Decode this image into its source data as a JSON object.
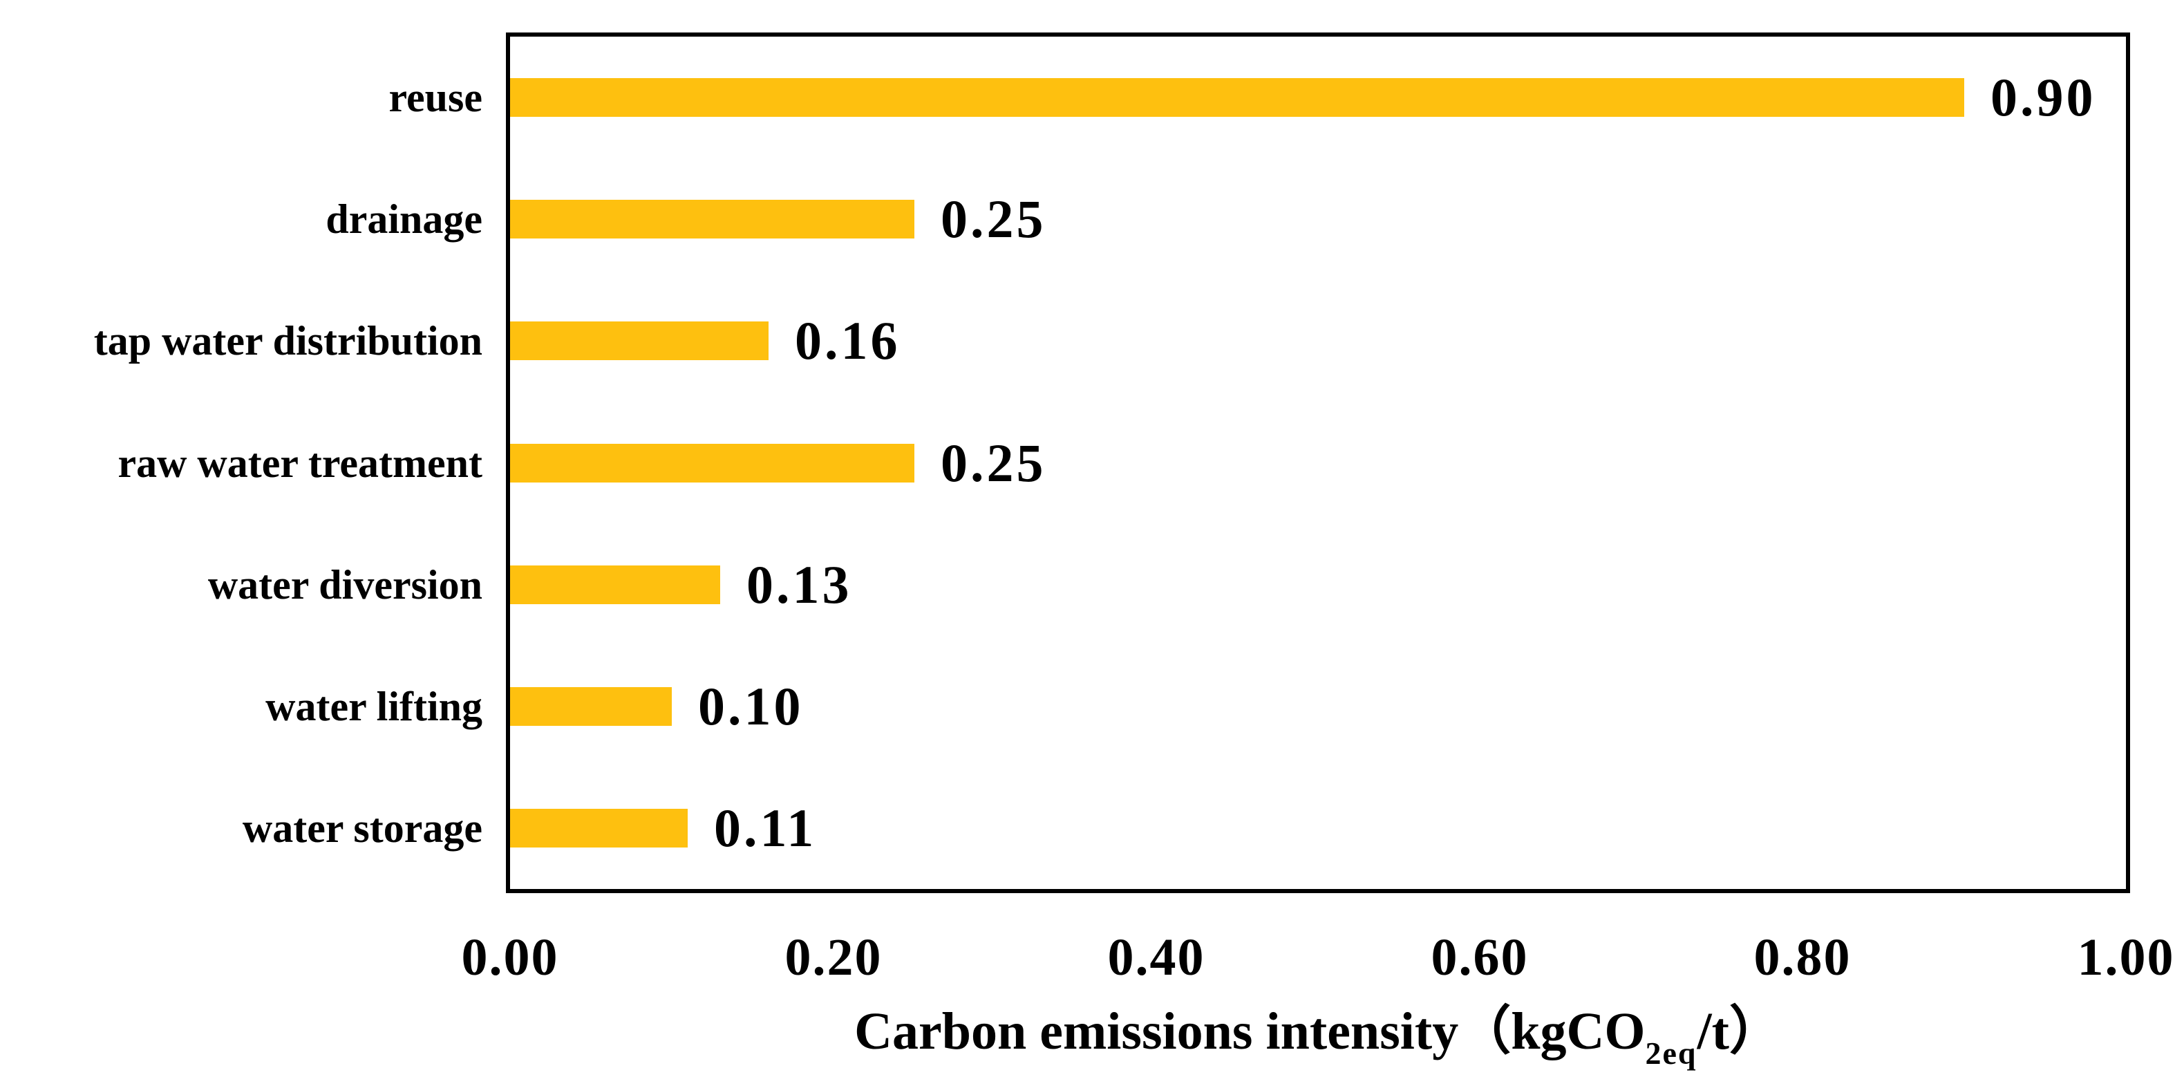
{
  "chart_data": {
    "type": "bar",
    "orientation": "horizontal",
    "title": "",
    "categories": [
      "reuse",
      "drainage",
      "tap water distribution",
      "raw water treatment",
      "water diversion",
      "water lifting",
      "water storage"
    ],
    "values": [
      0.9,
      0.25,
      0.16,
      0.25,
      0.13,
      0.1,
      0.11
    ],
    "value_labels": [
      "0.90",
      "0.25",
      "0.16",
      "0.25",
      "0.13",
      "0.10",
      "0.11"
    ],
    "x_ticks": [
      "0.00",
      "0.20",
      "0.40",
      "0.60",
      "0.80",
      "1.00"
    ],
    "x_tick_values": [
      0,
      0.2,
      0.4,
      0.6,
      0.8,
      1.0
    ],
    "xlim": [
      0,
      1
    ],
    "xlabel": {
      "prefix": "Carbon emissions intensity",
      "open_paren": "（",
      "unit_main": "kgCO",
      "unit_sub": "2eq",
      "unit_suffix": "/t",
      "close_paren": "）"
    },
    "ylabel": "",
    "grid": false,
    "legend": false,
    "bar_color": "#FEC00F",
    "axis_color": "#000000",
    "text_color": "#000000",
    "background_color": "#FFFFFF"
  }
}
